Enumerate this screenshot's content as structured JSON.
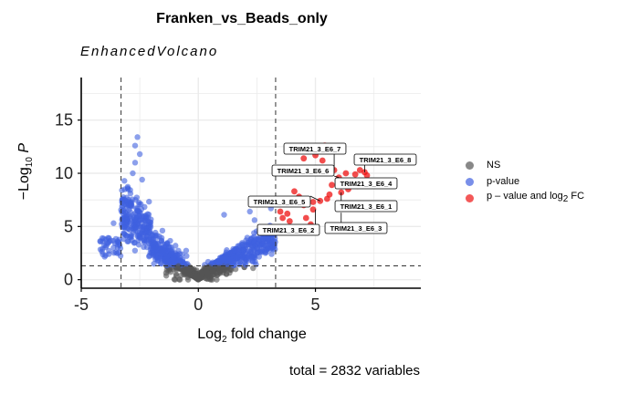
{
  "chart_data": {
    "type": "scatter",
    "title": "Franken_vs_Beads_only",
    "subtitle": "EnhancedVolcano",
    "caption": "total = 2832 variables",
    "xlabel": "Log2 fold change",
    "ylabel": "−Log10 P",
    "xlim": [
      -5,
      9.5
    ],
    "ylim": [
      -0.8,
      19
    ],
    "xticks": [
      "-5",
      "0",
      "5"
    ],
    "yticks": [
      "0",
      "5",
      "10",
      "15"
    ],
    "fc_cutoff": 3.3,
    "p_cutoff_log": 1.3,
    "grid": true,
    "legend_position": "right",
    "colors": {
      "ns": "#555555",
      "pvalue": "#4060e0",
      "both": "#ee1111"
    },
    "legend": [
      {
        "key": "ns",
        "label": "NS"
      },
      {
        "key": "pvalue",
        "label": "p-value"
      },
      {
        "key": "both",
        "label": "p – value and log",
        "sub": "2",
        "suffix": " FC"
      }
    ],
    "highlight_points": [
      [
        6.1,
        8.2
      ],
      [
        6.4,
        8.5
      ],
      [
        5.6,
        8.0
      ],
      [
        5.2,
        7.4
      ],
      [
        5.5,
        7.6
      ],
      [
        4.9,
        7.3
      ],
      [
        6.0,
        9.6
      ],
      [
        6.7,
        9.9
      ],
      [
        7.1,
        10.1
      ],
      [
        6.3,
        10.0
      ],
      [
        6.9,
        10.3
      ],
      [
        5.8,
        10.3
      ],
      [
        5.3,
        11.2
      ],
      [
        5.4,
        12.6
      ],
      [
        5.0,
        11.7
      ],
      [
        4.5,
        11.4
      ],
      [
        5.7,
        8.9
      ],
      [
        6.3,
        9.0
      ],
      [
        4.1,
        8.3
      ],
      [
        4.5,
        7.0
      ],
      [
        4.9,
        6.6
      ],
      [
        4.6,
        5.8
      ],
      [
        3.8,
        6.2
      ],
      [
        3.6,
        5.8
      ],
      [
        3.9,
        5.5
      ],
      [
        4.3,
        7.8
      ],
      [
        4.8,
        5.2
      ],
      [
        3.5,
        6.4
      ],
      [
        6.8,
        8.8
      ],
      [
        7.2,
        9.8
      ]
    ],
    "labels": [
      {
        "text": "TRIM21_3_E6_7",
        "x": 5.8,
        "y": 10.3
      },
      {
        "text": "TRIM21_3_E6_8",
        "x": 7.1,
        "y": 10.1
      },
      {
        "text": "TRIM21_3_E6_6",
        "x": 6.0,
        "y": 9.6
      },
      {
        "text": "TRIM21_3_E6_4",
        "x": 6.3,
        "y": 9.0
      },
      {
        "text": "TRIM21_3_E6_5",
        "x": 5.2,
        "y": 7.4
      },
      {
        "text": "TRIM21_3_E6_1",
        "x": 6.1,
        "y": 8.2
      },
      {
        "text": "TRIM21_3_E6_2",
        "x": 5.0,
        "y": 6.6
      },
      {
        "text": "TRIM21_3_E6_3",
        "x": 6.1,
        "y": 6.3
      }
    ]
  }
}
